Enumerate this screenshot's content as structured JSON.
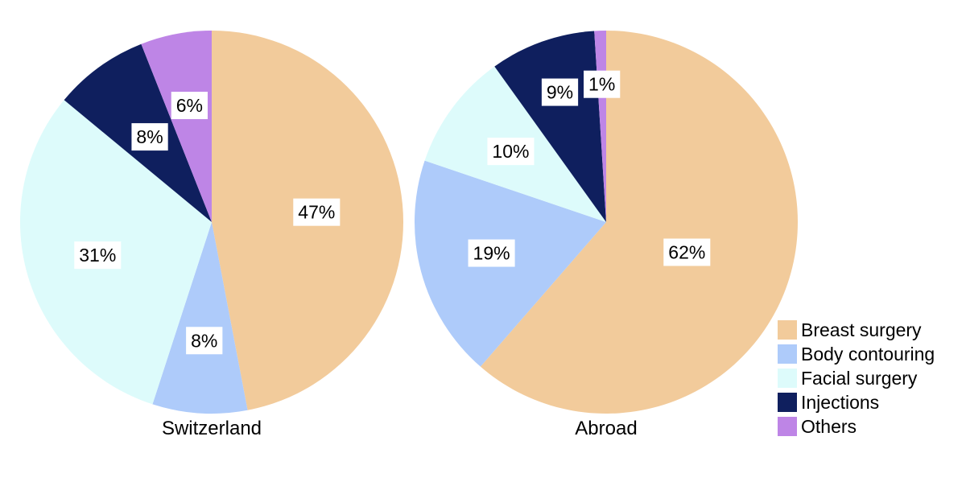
{
  "chart_data": [
    {
      "type": "pie",
      "title": "Switzerland",
      "categories": [
        "Breast surgery",
        "Body contouring",
        "Facial surgery",
        "Injections",
        "Others"
      ],
      "values": [
        47,
        8,
        31,
        8,
        6
      ],
      "labels": [
        "47%",
        "8%",
        "31%",
        "8%",
        "6%"
      ]
    },
    {
      "type": "pie",
      "title": "Abroad",
      "categories": [
        "Breast surgery",
        "Body contouring",
        "Facial surgery",
        "Injections",
        "Others"
      ],
      "values": [
        62,
        19,
        10,
        9,
        1
      ],
      "labels": [
        "62%",
        "19%",
        "10%",
        "9%",
        "1%"
      ]
    }
  ],
  "legend": {
    "placement": "bottom-right",
    "items": [
      {
        "label": "Breast surgery",
        "color": "#F2CB9B"
      },
      {
        "label": "Body contouring",
        "color": "#AECBFA"
      },
      {
        "label": "Facial surgery",
        "color": "#DDFBFB"
      },
      {
        "label": "Injections",
        "color": "#0F1F5E"
      },
      {
        "label": "Others",
        "color": "#BE85E6"
      }
    ]
  }
}
